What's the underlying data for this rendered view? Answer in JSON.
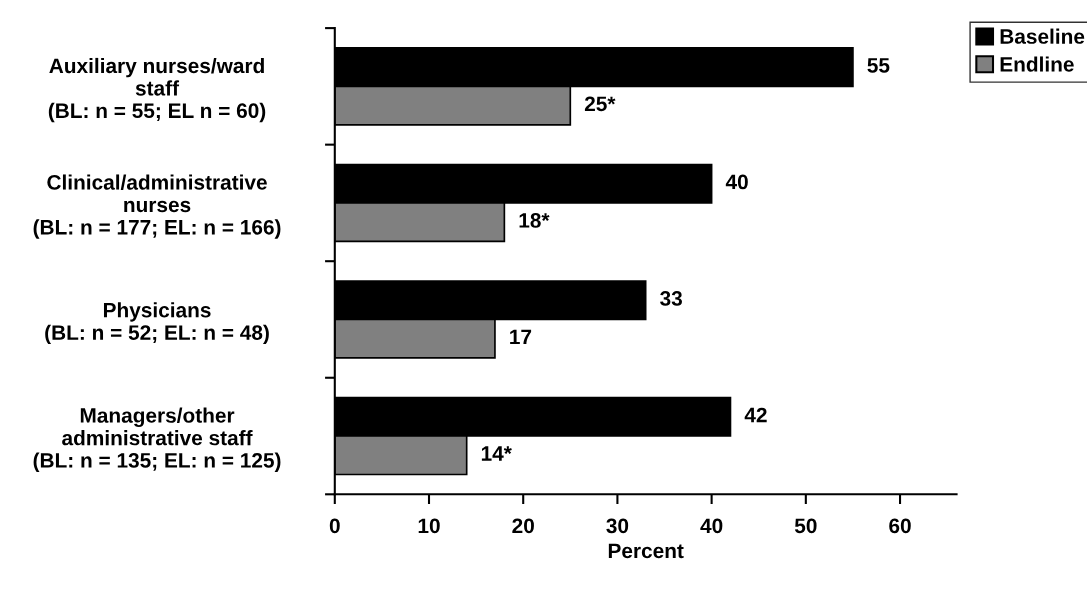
{
  "chart_data": {
    "type": "bar",
    "orientation": "horizontal",
    "xlabel": "Percent",
    "categories": [
      "Auxiliary nurses/ward\nstaff\n(BL: n = 55; EL n = 60)",
      "Clinical/administrative\nnurses\n(BL: n = 177; EL: n = 166)",
      "Physicians\n(BL: n = 52; EL: n = 48)",
      "Managers/other\nadministrative staff\n(BL: n = 135; EL: n = 125)"
    ],
    "series": [
      {
        "name": "Baseline",
        "color": "#000000",
        "values": [
          55,
          40,
          33,
          42
        ],
        "value_labels": [
          "55",
          "40",
          "33",
          "42"
        ]
      },
      {
        "name": "Endline",
        "color": "#808080",
        "values": [
          25,
          18,
          17,
          14
        ],
        "value_labels": [
          "25*",
          "18*",
          "17",
          "14*"
        ]
      }
    ],
    "xlim": [
      0,
      66
    ],
    "xticks": [
      0,
      10,
      20,
      30,
      40,
      50,
      60
    ],
    "legend": "top right",
    "grid": false
  }
}
